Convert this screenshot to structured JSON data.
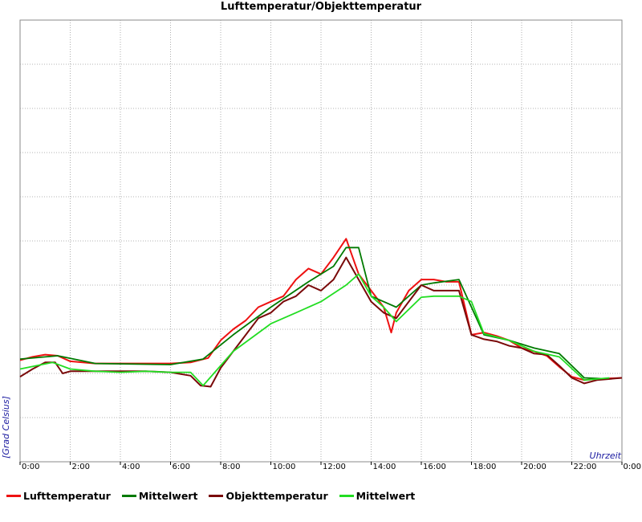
{
  "chart_data": {
    "type": "line",
    "title": "Lufttemperatur/Objekttemperatur",
    "xlabel": "Uhrzeit",
    "ylabel": "[Grad Celsius]",
    "xlim": [
      0,
      24
    ],
    "x_tick_labels": [
      "0:00",
      "2:00",
      "4:00",
      "6:00",
      "8:00",
      "10:00",
      "12:00",
      "14:00",
      "16:00",
      "18:00",
      "20:00",
      "22:00",
      "0:00"
    ],
    "grid": true,
    "legend_position": "bottom",
    "series": [
      {
        "name": "Lufttemperatur",
        "color": "#ee1111",
        "x": [
          0,
          0.5,
          1,
          1.5,
          2,
          3,
          4,
          5,
          6,
          6.8,
          7.5,
          8,
          8.5,
          9,
          9.5,
          10,
          10.5,
          11,
          11.5,
          12,
          12.5,
          13,
          13.5,
          14,
          14.5,
          14.8,
          15,
          15.5,
          16,
          16.5,
          17,
          17.5,
          18,
          18.5,
          19,
          19.5,
          20,
          20.5,
          21,
          21.5,
          22,
          22.5,
          23,
          24
        ],
        "values": [
          9.2,
          9.5,
          9.7,
          9.6,
          9.1,
          8.9,
          8.9,
          8.9,
          8.9,
          9.0,
          9.4,
          11.0,
          12.0,
          12.8,
          14.0,
          14.5,
          15.0,
          16.5,
          17.5,
          17.0,
          18.5,
          20.2,
          17.0,
          15.5,
          14.0,
          11.7,
          13.5,
          15.5,
          16.5,
          16.5,
          16.3,
          16.3,
          11.5,
          11.7,
          11.4,
          11.0,
          10.3,
          10.0,
          9.6,
          8.6,
          7.7,
          7.4,
          7.5,
          7.6
        ]
      },
      {
        "name": "Mittelwert",
        "color": "#007a00",
        "x": [
          0,
          1.5,
          3,
          6,
          7.3,
          8.5,
          10,
          11.5,
          12.5,
          13,
          13.5,
          14,
          15,
          16,
          16.5,
          17.5,
          18.5,
          19.5,
          20.5,
          21.5,
          22.5,
          23.5
        ],
        "values": [
          9.3,
          9.6,
          8.9,
          8.8,
          9.3,
          11.5,
          14.0,
          16.3,
          17.7,
          19.4,
          19.4,
          15.0,
          14.0,
          16.0,
          16.2,
          16.5,
          11.5,
          11.0,
          10.3,
          9.8,
          7.6,
          7.5
        ]
      },
      {
        "name": "Objekttemperatur",
        "color": "#7a0a0a",
        "x": [
          0,
          0.5,
          1,
          1.4,
          1.7,
          2,
          3,
          4,
          5,
          6,
          6.8,
          7.2,
          7.6,
          8,
          8.5,
          9,
          9.5,
          10,
          10.5,
          11,
          11.5,
          12,
          12.5,
          13,
          13.5,
          14,
          14.5,
          15,
          15.5,
          16,
          16.5,
          17,
          17.5,
          18,
          18.5,
          19,
          19.5,
          20,
          20.5,
          21,
          21.5,
          22,
          22.5,
          23,
          24
        ],
        "values": [
          7.7,
          8.4,
          9.0,
          9.0,
          8.0,
          8.2,
          8.2,
          8.2,
          8.2,
          8.1,
          7.8,
          6.9,
          6.8,
          8.5,
          10.0,
          11.5,
          13.0,
          13.5,
          14.5,
          15.0,
          16.0,
          15.5,
          16.5,
          18.5,
          16.5,
          14.5,
          13.5,
          13.0,
          14.5,
          16.0,
          15.5,
          15.5,
          15.5,
          11.5,
          11.1,
          10.9,
          10.5,
          10.3,
          9.8,
          9.7,
          8.7,
          7.6,
          7.1,
          7.4,
          7.6
        ]
      },
      {
        "name": "Mittelwert",
        "color": "#22dd22",
        "x": [
          0,
          1.3,
          2,
          3,
          4,
          5,
          6,
          6.8,
          7.3,
          8.5,
          10,
          11,
          12,
          13,
          13.5,
          14,
          14.5,
          15,
          16,
          16.5,
          17.5,
          18,
          18.5,
          19.5,
          20.5,
          21.5,
          22.5,
          23.5
        ],
        "values": [
          8.4,
          9.0,
          8.4,
          8.2,
          8.1,
          8.2,
          8.1,
          8.1,
          6.9,
          10.0,
          12.5,
          13.5,
          14.5,
          16.0,
          17.0,
          15.0,
          14.0,
          12.7,
          14.9,
          15.0,
          15.0,
          14.5,
          11.6,
          11.0,
          10.0,
          9.5,
          7.4,
          7.6
        ]
      }
    ]
  }
}
